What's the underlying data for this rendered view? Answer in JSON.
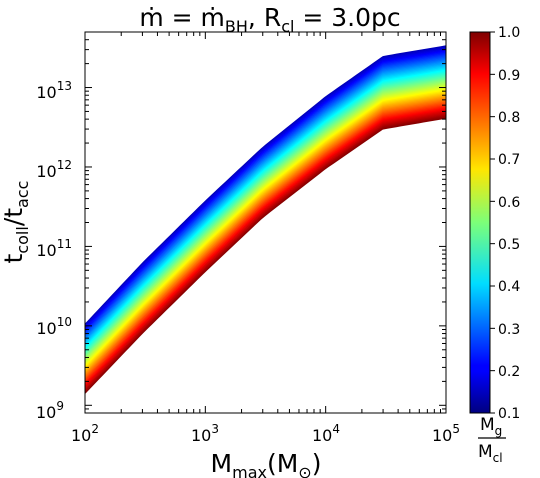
{
  "chart_data": {
    "type": "area",
    "title": {
      "m": "ṁ",
      "eq1": " = ",
      "mbh": "ṁ",
      "mbh_sub": "BH",
      "sep": ", ",
      "r": "R",
      "r_sub": "cl",
      "eq2": " = 3.0pc"
    },
    "xlabel": {
      "main": "M",
      "sub": "max",
      "unit_open": "(M",
      "unit_sub": "⊙",
      "unit_close": ")"
    },
    "ylabel": {
      "main": "t",
      "sub1": "coll",
      "slash": "/t",
      "sub2": "acc"
    },
    "xscale": "log",
    "yscale": "log",
    "xlim": [
      100,
      100000
    ],
    "ylim": [
      800000000,
      50000000000000
    ],
    "x_ticks": [
      {
        "base": "10",
        "exp": "2",
        "value": 100
      },
      {
        "base": "10",
        "exp": "3",
        "value": 1000
      },
      {
        "base": "10",
        "exp": "4",
        "value": 10000
      },
      {
        "base": "10",
        "exp": "5",
        "value": 100000
      }
    ],
    "y_ticks": [
      {
        "base": "10",
        "exp": "9",
        "value": 1000000000
      },
      {
        "base": "10",
        "exp": "10",
        "value": 10000000000
      },
      {
        "base": "10",
        "exp": "11",
        "value": 100000000000
      },
      {
        "base": "10",
        "exp": "12",
        "value": 1000000000000
      },
      {
        "base": "10",
        "exp": "13",
        "value": 10000000000000
      }
    ],
    "band_x": [
      100,
      300,
      1000,
      3000,
      10000,
      30000,
      100000
    ],
    "band_upper": [
      10700000000,
      63000000000,
      380000000000,
      1800000000000,
      7800000000000,
      25000000000000,
      34000000000000
    ],
    "band_lower": [
      1400000000,
      8000000000,
      48000000000,
      230000000000,
      950000000000,
      3000000000000,
      4100000000000
    ],
    "colorbar": {
      "colormap": "jet",
      "range": [
        0.1,
        1.0
      ],
      "ticks": [
        "0.1",
        "0.2",
        "0.3",
        "0.4",
        "0.5",
        "0.6",
        "0.7",
        "0.8",
        "0.9",
        "1.0"
      ],
      "label": {
        "num": "M",
        "num_sub": "g",
        "den": "M",
        "den_sub": "cl"
      },
      "note": "low ratio at top of band (blue), high ratio at bottom (red)"
    }
  }
}
